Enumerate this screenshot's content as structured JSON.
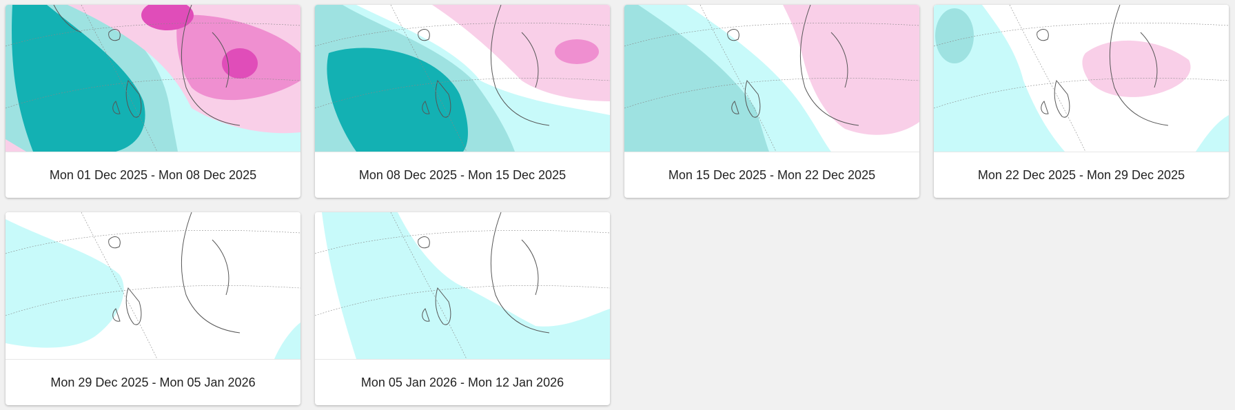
{
  "colors": {
    "background": "#f1f1f1",
    "warm_light": "#f9cfe8",
    "warm_mid": "#ef8fd0",
    "warm_strong": "#e04db9",
    "cold_light": "#c8fafa",
    "cold_mid": "#9ee2e1",
    "cold_strong": "#13b1b3"
  },
  "cards": [
    {
      "label": "Mon 01 Dec 2025 - Mon 08 Dec 2025",
      "anomaly": {
        "warm": "strong",
        "cold": "strong"
      }
    },
    {
      "label": "Mon 08 Dec 2025 - Mon 15 Dec 2025",
      "anomaly": {
        "warm": "mid",
        "cold": "strong"
      }
    },
    {
      "label": "Mon 15 Dec 2025 - Mon 22 Dec 2025",
      "anomaly": {
        "warm": "light",
        "cold": "mid"
      }
    },
    {
      "label": "Mon 22 Dec 2025 - Mon 29 Dec 2025",
      "anomaly": {
        "warm": "light",
        "cold": "light"
      }
    },
    {
      "label": "Mon 29 Dec 2025 - Mon 05 Jan 2026",
      "anomaly": {
        "warm": "none",
        "cold": "light"
      }
    },
    {
      "label": "Mon 05 Jan 2026 - Mon 12 Jan 2026",
      "anomaly": {
        "warm": "none",
        "cold": "light"
      }
    }
  ]
}
